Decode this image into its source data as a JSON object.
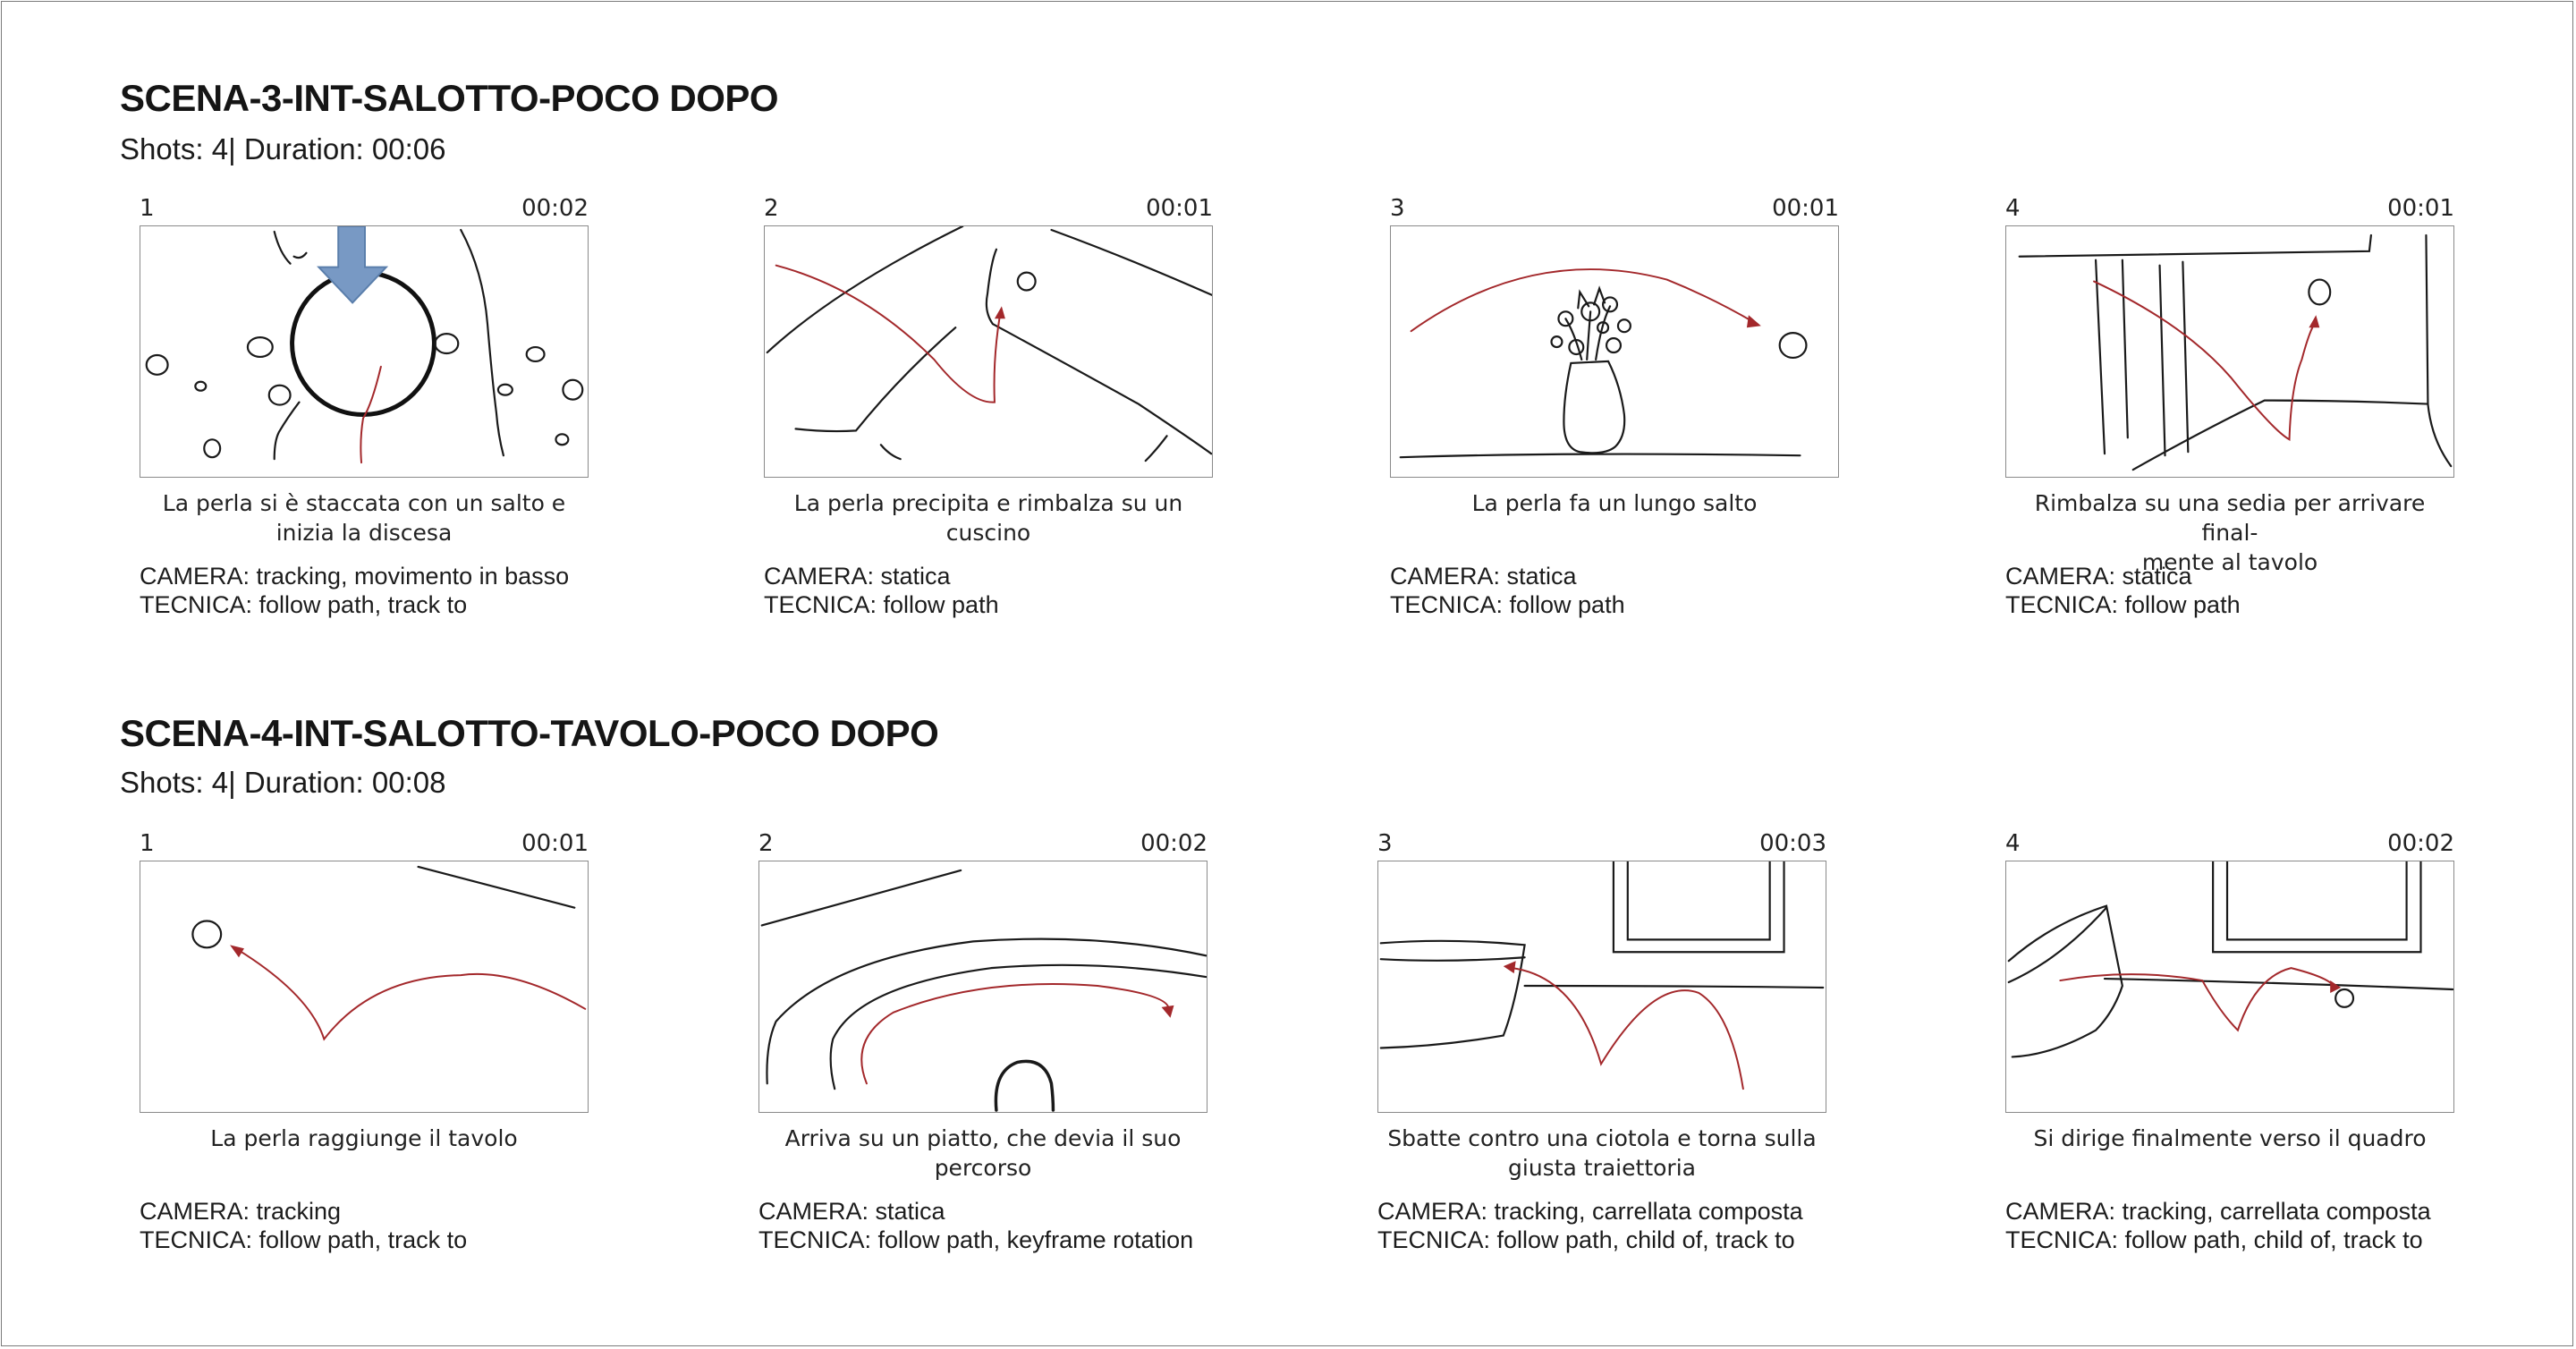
{
  "scenes": [
    {
      "title": "SCENA-3-INT-SALOTTO-POCO DOPO",
      "meta": "Shots: 4| Duration: 00:06",
      "shots": [
        {
          "num": "1",
          "time": "00:02",
          "desc_lines": [
            "La perla si è staccata con un salto e",
            "inizia la discesa"
          ],
          "camera": "CAMERA: tracking, movimento in basso",
          "tecnica": "TECNICA: follow path, track to"
        },
        {
          "num": "2",
          "time": "00:01",
          "desc_lines": [
            "La perla precipita e rimbalza su un cuscino",
            ""
          ],
          "camera": "CAMERA: statica",
          "tecnica": "TECNICA: follow path"
        },
        {
          "num": "3",
          "time": "00:01",
          "desc_lines": [
            "La perla fa un lungo salto",
            ""
          ],
          "camera": "CAMERA: statica",
          "tecnica": "TECNICA: follow path"
        },
        {
          "num": "4",
          "time": "00:01",
          "desc_lines": [
            "Rimbalza su una sedia per arrivare final-",
            "mente al tavolo"
          ],
          "camera": "CAMERA: statica",
          "tecnica": "TECNICA: follow path"
        }
      ]
    },
    {
      "title": "SCENA-4-INT-SALOTTO-TAVOLO-POCO DOPO",
      "meta": "Shots: 4| Duration: 00:08",
      "shots": [
        {
          "num": "1",
          "time": "00:01",
          "desc_lines": [
            "La perla raggiunge il tavolo",
            ""
          ],
          "camera": "CAMERA: tracking",
          "tecnica": "TECNICA: follow path, track to"
        },
        {
          "num": "2",
          "time": "00:02",
          "desc_lines": [
            "Arriva su un piatto, che devia il suo",
            "percorso"
          ],
          "camera": "CAMERA: statica",
          "tecnica": "TECNICA: follow path, keyframe rotation"
        },
        {
          "num": "3",
          "time": "00:03",
          "desc_lines": [
            "Sbatte contro una ciotola e torna sulla",
            "giusta traiettoria"
          ],
          "camera": "CAMERA: tracking, carrellata composta",
          "tecnica": "TECNICA: follow path, child of, track to"
        },
        {
          "num": "4",
          "time": "00:02",
          "desc_lines": [
            "Si dirige finalmente verso il quadro",
            ""
          ],
          "camera": "CAMERA: tracking, carrellata composta",
          "tecnica": "TECNICA: follow path, child of, track to"
        }
      ]
    }
  ],
  "colors": {
    "path_red": "#a3282b",
    "arrow_blue": "#7899c4",
    "frame_border": "#8a8a8a"
  },
  "icons": [
    "down-arrow-icon",
    "pearl-icon",
    "vase-of-flowers-icon"
  ]
}
